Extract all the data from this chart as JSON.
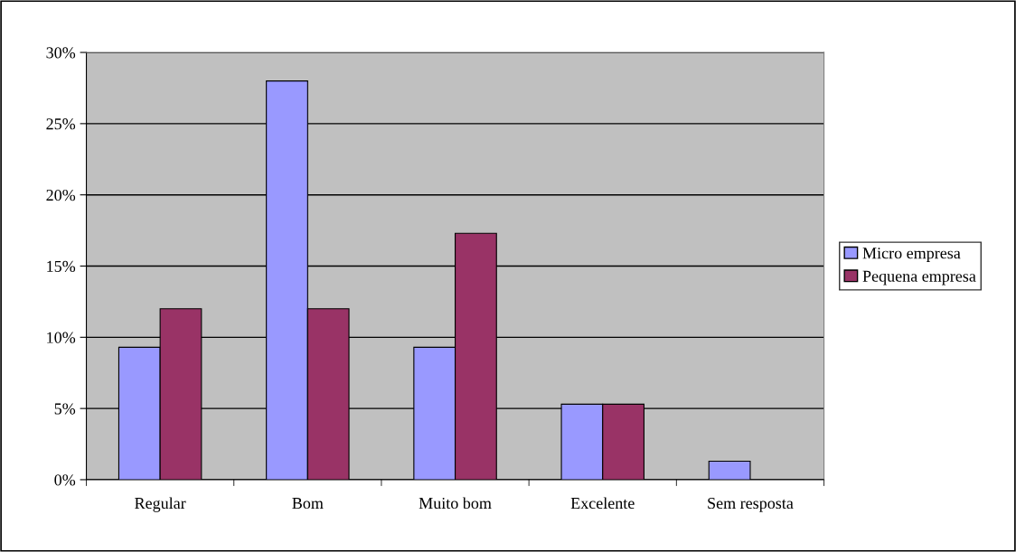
{
  "chart_data": {
    "type": "bar",
    "categories": [
      "Regular",
      "Bom",
      "Muito bom",
      "Excelente",
      "Sem resposta"
    ],
    "series": [
      {
        "name": "Micro empresa",
        "color": "#9999ff",
        "values": [
          9.3,
          28.0,
          9.3,
          5.3,
          1.3
        ]
      },
      {
        "name": "Pequena empresa",
        "color": "#993366",
        "values": [
          12.0,
          12.0,
          17.3,
          5.3,
          null
        ]
      }
    ],
    "ylim": [
      0,
      30
    ],
    "yticks": [
      {
        "value": 0,
        "label": "0%"
      },
      {
        "value": 5,
        "label": "5%"
      },
      {
        "value": 10,
        "label": "10%"
      },
      {
        "value": 15,
        "label": "15%"
      },
      {
        "value": 20,
        "label": "20%"
      },
      {
        "value": 25,
        "label": "25%"
      },
      {
        "value": 30,
        "label": "30%"
      }
    ],
    "grid": "y",
    "legend": "right"
  }
}
